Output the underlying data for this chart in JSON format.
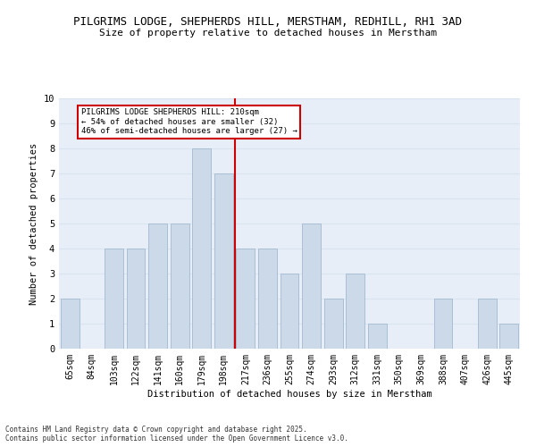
{
  "title": "PILGRIMS LODGE, SHEPHERDS HILL, MERSTHAM, REDHILL, RH1 3AD",
  "subtitle": "Size of property relative to detached houses in Merstham",
  "xlabel": "Distribution of detached houses by size in Merstham",
  "ylabel": "Number of detached properties",
  "categories": [
    "65sqm",
    "84sqm",
    "103sqm",
    "122sqm",
    "141sqm",
    "160sqm",
    "179sqm",
    "198sqm",
    "217sqm",
    "236sqm",
    "255sqm",
    "274sqm",
    "293sqm",
    "312sqm",
    "331sqm",
    "350sqm",
    "369sqm",
    "388sqm",
    "407sqm",
    "426sqm",
    "445sqm"
  ],
  "values": [
    2,
    0,
    4,
    4,
    5,
    5,
    8,
    7,
    4,
    4,
    3,
    5,
    2,
    3,
    1,
    0,
    0,
    2,
    0,
    2,
    1
  ],
  "bar_color": "#ccd9e8",
  "bar_edge_color": "#aabfd4",
  "redline_color": "#cc0000",
  "annotation_text": "PILGRIMS LODGE SHEPHERDS HILL: 210sqm\n← 54% of detached houses are smaller (32)\n46% of semi-detached houses are larger (27) →",
  "annotation_box_color": "#ffffff",
  "annotation_box_edge_color": "#cc0000",
  "ylim": [
    0,
    10
  ],
  "yticks": [
    0,
    1,
    2,
    3,
    4,
    5,
    6,
    7,
    8,
    9,
    10
  ],
  "grid_color": "#d8e4f0",
  "bg_color": "#e8eef8",
  "footer_line1": "Contains HM Land Registry data © Crown copyright and database right 2025.",
  "footer_line2": "Contains public sector information licensed under the Open Government Licence v3.0."
}
